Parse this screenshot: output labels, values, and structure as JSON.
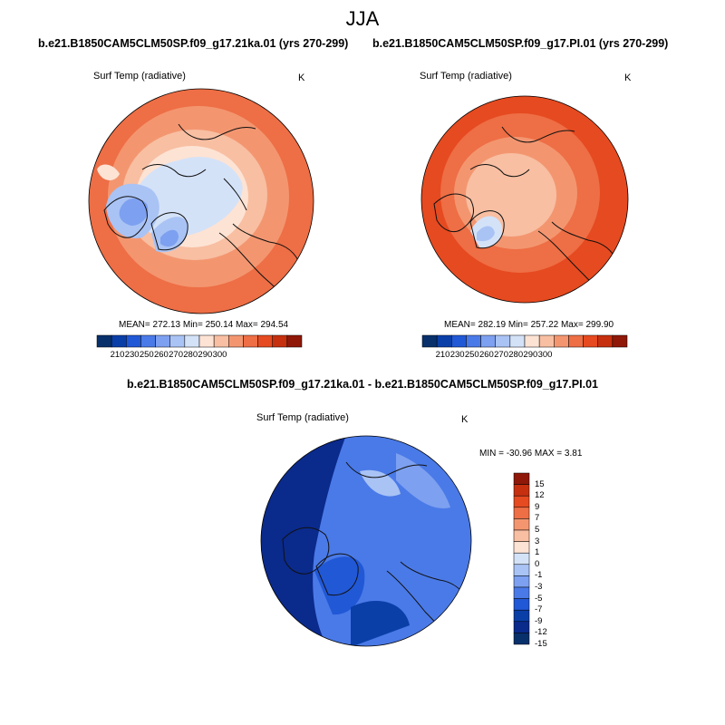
{
  "title": "JJA",
  "run_a": "b.e21.B1850CAM5CLM50SP.f09_g17.21ka.01 (yrs 270-299)",
  "run_b": "b.e21.B1850CAM5CLM50SP.f09_g17.PI.01 (yrs 270-299)",
  "diff_title": "b.e21.B1850CAM5CLM50SP.f09_g17.21ka.01 - b.e21.B1850CAM5CLM50SP.f09_g17.PI.01",
  "variable": "Surf Temp (radiative)",
  "units": "K",
  "panel_a": {
    "stats": "MEAN= 272.13  Min= 250.14  Max= 294.54"
  },
  "panel_b": {
    "stats": "MEAN= 282.19  Min= 257.22  Max= 299.90"
  },
  "panel_diff": {
    "stats": "MIN = -30.96 MAX =   3.81"
  },
  "abs_colorbar": {
    "labels": [
      "210",
      "230",
      "250",
      "260",
      "270",
      "280",
      "290",
      "300"
    ],
    "colors": [
      "#08306b",
      "#0a3fa8",
      "#2158d6",
      "#4a7ae8",
      "#7da0f0",
      "#a9c3f5",
      "#d4e2f8",
      "#fde3d4",
      "#f8bfa2",
      "#f39670",
      "#ee6e45",
      "#e64a20",
      "#c6300f",
      "#8f1808"
    ]
  },
  "diff_colorbar": {
    "labels": [
      "15",
      "12",
      "9",
      "7",
      "5",
      "3",
      "1",
      "0",
      "-1",
      "-3",
      "-5",
      "-7",
      "-9",
      "-12",
      "-15"
    ],
    "colors": [
      "#8f1808",
      "#c6300f",
      "#e64a20",
      "#ee6e45",
      "#f39670",
      "#f8bfa2",
      "#fde3d4",
      "#d4e2f8",
      "#a9c3f5",
      "#7da0f0",
      "#4a7ae8",
      "#2158d6",
      "#0a3fa8",
      "#0a2a8c",
      "#08306b"
    ]
  }
}
